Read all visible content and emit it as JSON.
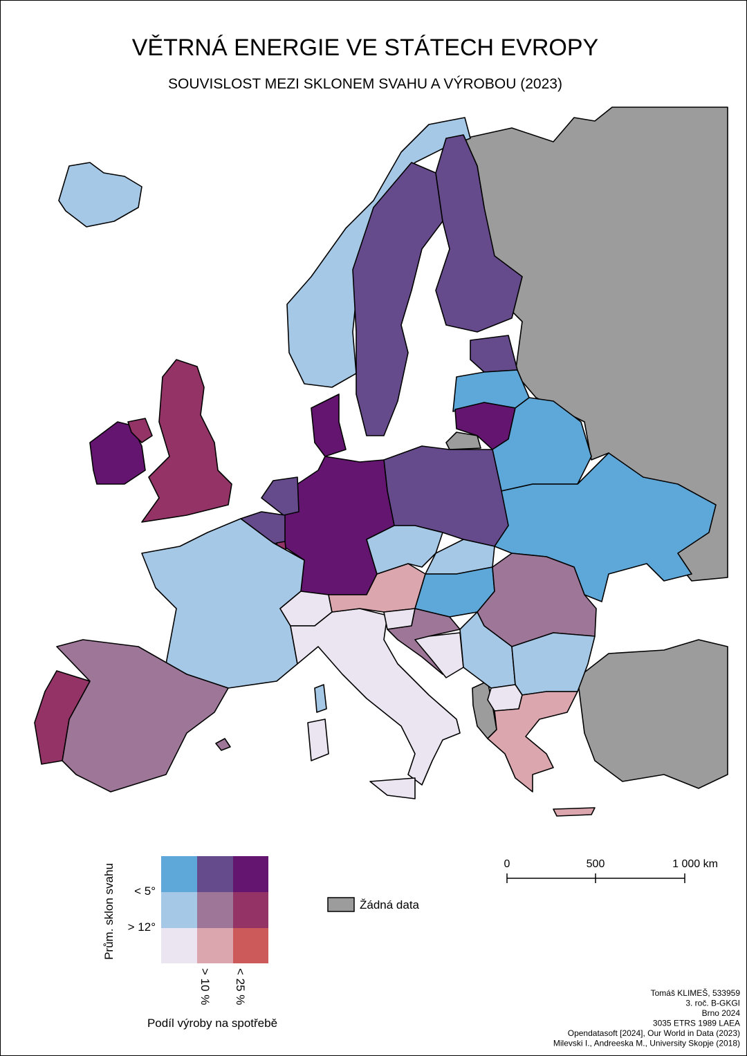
{
  "header": {
    "title": "VĚTRNÁ ENERGIE VE STÁTECH EVROPY",
    "subtitle": "SOUVISLOST MEZI SKLONEM SVAHU A VÝROBOU (2023)"
  },
  "legend": {
    "y_axis_title": "Prům. sklon svahu",
    "y_labels": [
      "< 5°",
      "> 12°"
    ],
    "x_labels": [
      "> 10 %",
      "< 25 %"
    ],
    "x_axis_title": "Podíl výroby na spotřebě",
    "no_data": "Žádná data"
  },
  "scale_bar": {
    "labels": [
      "0",
      "500",
      "1 000 km"
    ]
  },
  "credits": [
    "Tomáš KLIMEŠ, 533959",
    "3. roč. B-GKGI",
    "Brno 2024",
    "3035 ETRS 1989 LAEA",
    "Opendatasoft [2024], Our World in Data (2023)",
    "Milevski I., Andreeska M., University Skopje (2018)"
  ]
}
